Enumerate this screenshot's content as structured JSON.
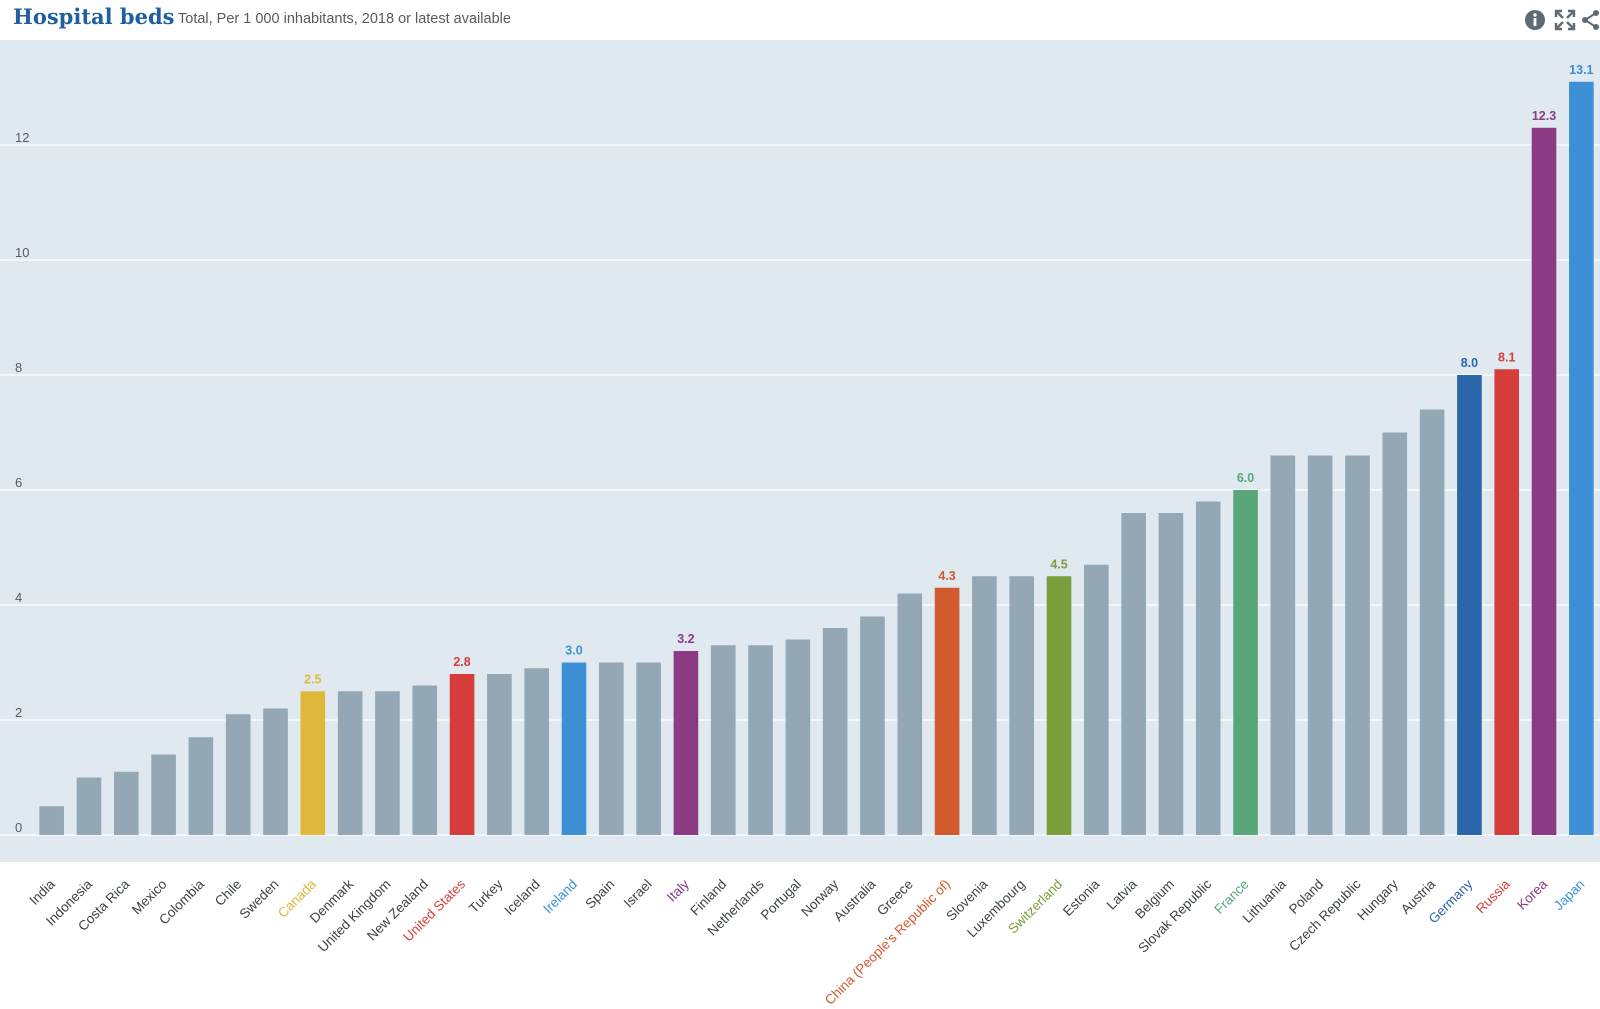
{
  "header": {
    "title": "Hospital beds",
    "subtitle": "Total, Per 1 000 inhabitants, 2018 or latest available",
    "icons": [
      "info-icon",
      "fullscreen-icon",
      "share-icon"
    ]
  },
  "colors": {
    "default_bar": "#94a7b4",
    "plot_background": "#e1e9f0",
    "title": "#1f5f9f"
  },
  "chart_data": {
    "type": "bar",
    "title": "Hospital beds",
    "subtitle": "Total, Per 1 000 inhabitants, 2018 or latest available",
    "ylim": [
      0,
      13.5
    ],
    "yticks": [
      0,
      2,
      4,
      6,
      8,
      10,
      12
    ],
    "grid": true,
    "categories": [
      "India",
      "Indonesia",
      "Costa Rica",
      "Mexico",
      "Colombia",
      "Chile",
      "Sweden",
      "Canada",
      "Denmark",
      "United Kingdom",
      "New Zealand",
      "United States",
      "Turkey",
      "Iceland",
      "Ireland",
      "Spain",
      "Israel",
      "Italy",
      "Finland",
      "Netherlands",
      "Portugal",
      "Norway",
      "Australia",
      "Greece",
      "China (People's Republic of)",
      "Slovenia",
      "Luxembourg",
      "Switzerland",
      "Estonia",
      "Latvia",
      "Belgium",
      "Slovak Republic",
      "France",
      "Lithuania",
      "Poland",
      "Czech Republic",
      "Hungary",
      "Austria",
      "Germany",
      "Russia",
      "Korea",
      "Japan"
    ],
    "values": [
      0.5,
      1.0,
      1.1,
      1.4,
      1.7,
      2.1,
      2.2,
      2.5,
      2.5,
      2.5,
      2.6,
      2.8,
      2.8,
      2.9,
      3.0,
      3.0,
      3.0,
      3.2,
      3.3,
      3.3,
      3.4,
      3.6,
      3.8,
      4.2,
      4.3,
      4.5,
      4.5,
      4.5,
      4.7,
      5.6,
      5.6,
      5.8,
      6.0,
      6.6,
      6.6,
      6.6,
      7.0,
      7.4,
      8.0,
      8.1,
      12.3,
      13.1
    ],
    "highlights": {
      "Canada": {
        "color": "#dfb73a",
        "label": "2.5"
      },
      "United States": {
        "color": "#d63d3a",
        "label": "2.8"
      },
      "Ireland": {
        "color": "#3d8fd6",
        "label": "3.0"
      },
      "Italy": {
        "color": "#8a3b84",
        "label": "3.2"
      },
      "China (People's Republic of)": {
        "color": "#d15a2f",
        "label": "4.3"
      },
      "Switzerland": {
        "color": "#7b9e3c",
        "label": "4.5"
      },
      "France": {
        "color": "#5aa57a",
        "label": "6.0"
      },
      "Germany": {
        "color": "#2b66aa",
        "label": "8.0"
      },
      "Russia": {
        "color": "#d63d3a",
        "label": "8.1"
      },
      "Korea": {
        "color": "#8a3b84",
        "label": "12.3"
      },
      "Japan": {
        "color": "#3d8fd6",
        "label": "13.1"
      }
    }
  }
}
